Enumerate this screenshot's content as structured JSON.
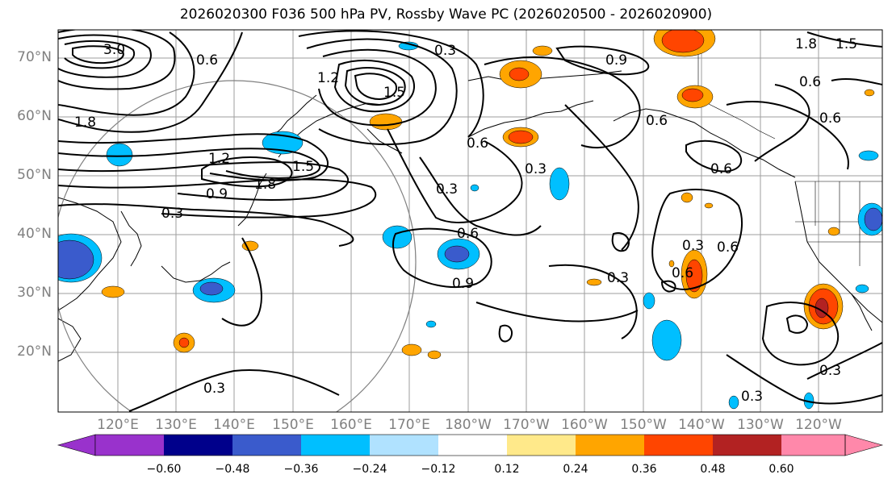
{
  "title": "2026020300 F036 500 hPa PV, Rossby Wave PC (2026020500 - 2026020900)",
  "lat_labels": [
    "70°N",
    "60°N",
    "50°N",
    "40°N",
    "30°N",
    "20°N"
  ],
  "lon_labels": [
    "120°E",
    "130°E",
    "140°E",
    "150°E",
    "160°E",
    "170°E",
    "180°W",
    "170°W",
    "160°W",
    "150°W",
    "140°W",
    "130°W",
    "120°W"
  ],
  "contour_labels": {
    "c1": "0.3",
    "c2": "0.9",
    "c3": "1.8",
    "c4": "1.2",
    "c5": "1.5",
    "c6": "0.6",
    "c7": "0.3",
    "c8": "1.8",
    "c9": "1.5",
    "c10": "1.2",
    "c11": "0.9",
    "c12": "0.3",
    "c13": "0.6",
    "c14": "0.9",
    "c15": "0.3",
    "c16": "0.6",
    "c17": "0.6",
    "c18": "0.3",
    "c19": "0.3",
    "c20": "0.6",
    "c21": "0.3",
    "c22": "0.3",
    "c23": "0.3",
    "c24": "0.6",
    "c25": "0.6",
    "c26": "1.8",
    "c27": "1.5",
    "c28": "0.6",
    "c29": "3.0",
    "c30": "0.6"
  },
  "colorbar": {
    "labels": [
      "−0.60",
      "−0.48",
      "−0.36",
      "−0.24",
      "−0.12",
      "0.12",
      "0.24",
      "0.36",
      "0.48",
      "0.60"
    ],
    "colors": [
      "#9932cc",
      "#00008b",
      "#3a5bcc",
      "#00bfff",
      "#b0e2ff",
      "#ffffff",
      "#ffe98a",
      "#ffa500",
      "#ff4500",
      "#b22222",
      "#ff88aa"
    ]
  }
}
